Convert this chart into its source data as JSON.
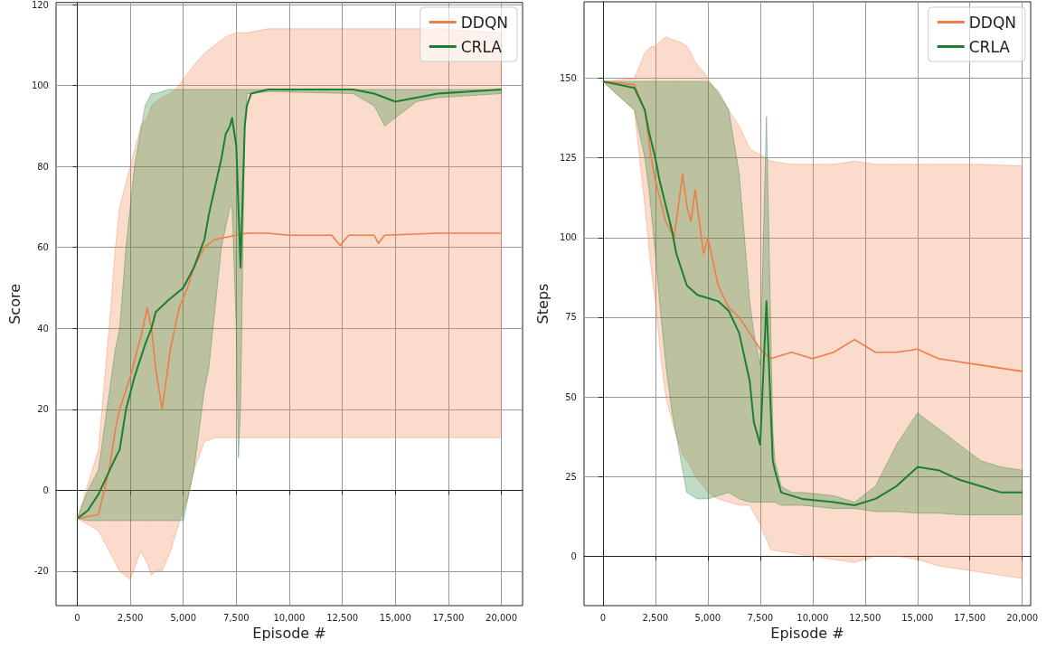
{
  "chart_data": [
    {
      "type": "line",
      "xlabel": "Episode #",
      "ylabel": "Score",
      "xlim": [
        -1000,
        21000
      ],
      "ylim": [
        -28.5,
        120.5
      ],
      "xticks": [
        0,
        {
          "value": 2500,
          "label": "2,500"
        },
        {
          "value": 5000,
          "label": "5,000"
        },
        {
          "value": 7500,
          "label": "7,500"
        },
        {
          "value": 10000,
          "label": "10,000"
        },
        {
          "value": 12500,
          "label": "12,500"
        },
        {
          "value": 15000,
          "label": "15,000"
        },
        {
          "value": 17500,
          "label": "17,500"
        },
        {
          "value": 20000,
          "label": "20,000"
        }
      ],
      "yticks": [
        -20,
        0,
        20,
        40,
        60,
        80,
        100,
        120
      ],
      "grid": true,
      "legend": "top right",
      "marker": "none",
      "line_style": "solid",
      "series": [
        {
          "name": "DDQN",
          "color": "#f07c48",
          "x": [
            0,
            1000,
            1500,
            1800,
            2000,
            2500,
            3000,
            3300,
            3500,
            3700,
            4000,
            4400,
            4800,
            5200,
            5500,
            6000,
            6500,
            7000,
            7500,
            8000,
            9000,
            10000,
            12000,
            12400,
            12800,
            14000,
            14200,
            14500,
            17000,
            20000
          ],
          "values": [
            -7,
            -6,
            5,
            15,
            20,
            28,
            38,
            45,
            40,
            30,
            20,
            35,
            45,
            50,
            55,
            60,
            62,
            62.5,
            63,
            63.5,
            63.5,
            63,
            63,
            60.5,
            63,
            63,
            61,
            63,
            63.5,
            63.5
          ],
          "upper": [
            -7,
            10,
            40,
            60,
            70,
            80,
            90,
            92,
            95,
            96,
            97,
            98,
            100,
            103,
            105,
            108,
            110,
            112,
            113,
            113,
            114,
            114,
            114,
            114,
            114,
            114,
            114,
            114,
            114,
            113
          ],
          "lower": [
            -7,
            -10,
            -15,
            -18,
            -20,
            -22,
            -15,
            -18,
            -21,
            -20,
            -20,
            -15,
            -8,
            -2,
            5,
            12,
            13,
            13,
            13,
            13,
            13,
            13,
            13,
            13,
            13,
            13,
            13,
            13,
            13,
            13
          ]
        },
        {
          "name": "CRLA",
          "color": "#1a7f30",
          "x": [
            0,
            500,
            1000,
            1800,
            2000,
            2300,
            2700,
            3200,
            3500,
            3700,
            4300,
            5000,
            5500,
            6000,
            6200,
            6500,
            6800,
            7000,
            7200,
            7300,
            7500,
            7600,
            7700,
            7900,
            8000,
            8200,
            9000,
            13000,
            14000,
            14500,
            15000,
            15500,
            16000,
            17000,
            20000
          ],
          "values": [
            -7,
            -5,
            -1,
            8,
            10,
            20,
            28,
            36,
            40,
            44,
            47,
            50,
            55,
            62,
            68,
            75,
            82,
            88,
            90,
            92,
            85,
            70,
            55,
            90,
            95,
            98,
            99,
            99,
            98,
            97,
            96,
            96.5,
            97,
            98,
            99
          ],
          "upper": [
            -7,
            0,
            5,
            35,
            40,
            60,
            80,
            95,
            98,
            98,
            99,
            99,
            99,
            99,
            99,
            99,
            99,
            99,
            99,
            99,
            99,
            99,
            99,
            99,
            99,
            99,
            99,
            99,
            99,
            99,
            99,
            99,
            99,
            99,
            99
          ],
          "lower": [
            -7,
            -7.5,
            -7.5,
            -7.5,
            -7.5,
            -7.5,
            -7.5,
            -7.5,
            -7.5,
            -7.5,
            -7.5,
            -7.5,
            5,
            25,
            30,
            45,
            60,
            65,
            70,
            70,
            40,
            8,
            20,
            90,
            98,
            98,
            98.5,
            98,
            95,
            90,
            92,
            94,
            96,
            97,
            98
          ]
        }
      ]
    },
    {
      "type": "line",
      "xlabel": "Episode #",
      "ylabel": "Steps",
      "xlim": [
        -900,
        20400
      ],
      "ylim": [
        -15.5,
        174
      ],
      "xticks": [
        0,
        {
          "value": 2500,
          "label": "2,500"
        },
        {
          "value": 5000,
          "label": "5,000"
        },
        {
          "value": 7500,
          "label": "7,500"
        },
        {
          "value": 10000,
          "label": "10,000"
        },
        {
          "value": 12500,
          "label": "12,500"
        },
        {
          "value": 15000,
          "label": "15,000"
        },
        {
          "value": 17500,
          "label": "17,500"
        },
        {
          "value": 20000,
          "label": "20,000"
        }
      ],
      "yticks": [
        0,
        25,
        50,
        75,
        100,
        125,
        150
      ],
      "grid": true,
      "legend": "top right",
      "marker": "none",
      "line_style": "solid",
      "series": [
        {
          "name": "DDQN",
          "color": "#f07c48",
          "x": [
            0,
            1500,
            2000,
            2300,
            2500,
            2800,
            3000,
            3400,
            3800,
            4000,
            4200,
            4400,
            4800,
            5000,
            5500,
            6000,
            6500,
            7000,
            7500,
            8000,
            9000,
            10000,
            11000,
            12000,
            13000,
            14000,
            15000,
            16000,
            18000,
            20000
          ],
          "values": [
            149,
            148,
            140,
            125,
            118,
            110,
            105,
            100,
            120,
            110,
            105,
            115,
            95,
            100,
            85,
            78,
            75,
            70,
            65,
            62,
            64,
            62,
            64,
            68,
            64,
            64,
            65,
            62,
            60,
            58
          ],
          "upper": [
            149,
            150,
            158,
            160,
            160,
            162,
            163,
            162,
            161,
            160,
            158,
            155,
            152,
            150,
            145,
            140,
            135,
            128,
            126,
            124,
            123,
            123,
            123,
            124,
            123,
            123,
            123,
            123,
            123,
            122.5
          ],
          "lower": [
            149,
            140,
            110,
            90,
            80,
            60,
            50,
            40,
            32,
            30,
            28,
            25,
            22,
            20,
            18,
            17,
            16,
            16,
            10,
            2,
            1,
            0,
            -1,
            -2,
            0,
            0,
            -1,
            -3,
            -5,
            -7
          ]
        },
        {
          "name": "CRLA",
          "color": "#1a7f30",
          "x": [
            0,
            1500,
            2000,
            2200,
            2500,
            2700,
            3000,
            3300,
            3500,
            4000,
            4500,
            5000,
            5500,
            6000,
            6500,
            7000,
            7200,
            7500,
            7800,
            8100,
            8200,
            8500,
            9000,
            9500,
            11000,
            12000,
            13000,
            14000,
            15000,
            16000,
            17000,
            18000,
            19000,
            20000
          ],
          "values": [
            149,
            147,
            140,
            133,
            125,
            118,
            110,
            102,
            95,
            85,
            82,
            81,
            80,
            77,
            70,
            55,
            42,
            35,
            80,
            30,
            27,
            20,
            19,
            18,
            17,
            16,
            18,
            22,
            28,
            27,
            24,
            22,
            20,
            20
          ],
          "upper": [
            149,
            149,
            149,
            149,
            149,
            149,
            149,
            149,
            149,
            149,
            149,
            149,
            146,
            140,
            120,
            80,
            70,
            60,
            138,
            40,
            30,
            22,
            20,
            20,
            19,
            17,
            22,
            35,
            45,
            40,
            35,
            30,
            28,
            27
          ],
          "lower": [
            149,
            140,
            125,
            115,
            95,
            80,
            60,
            45,
            38,
            20,
            18,
            18,
            19,
            20,
            18,
            17,
            17,
            17,
            17,
            17,
            17,
            16,
            16,
            16,
            15,
            15,
            14,
            14,
            13.5,
            13.5,
            13,
            13,
            13,
            13
          ]
        }
      ]
    }
  ]
}
